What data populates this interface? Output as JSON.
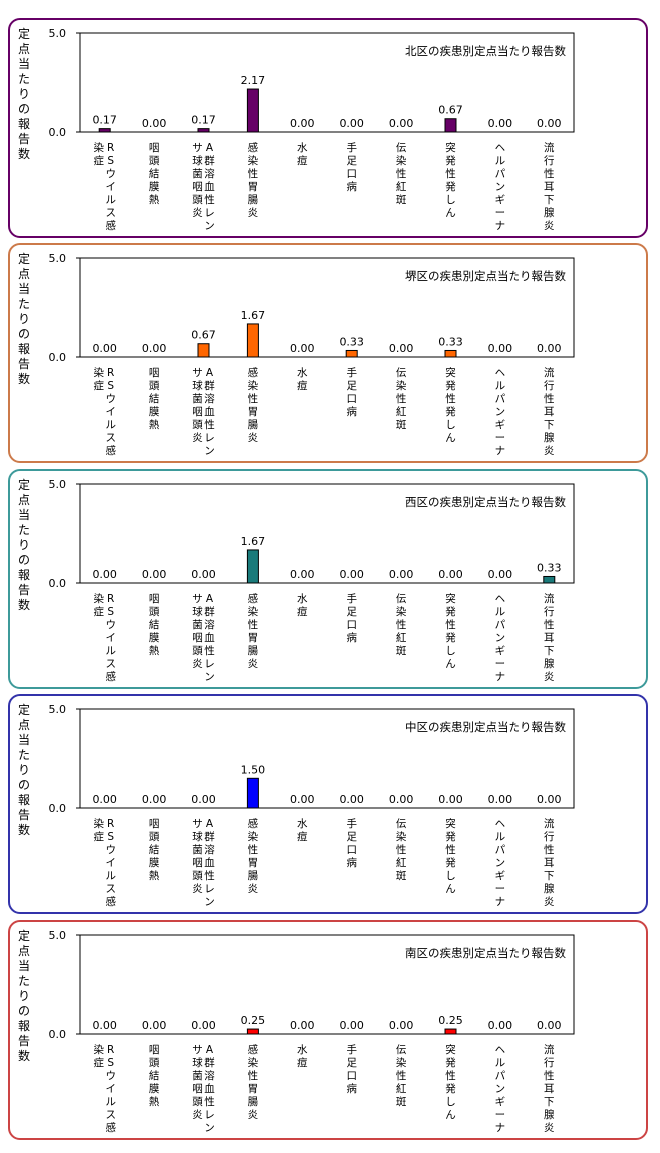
{
  "y_axis_label": "定点当たりの報告数",
  "chart_data": [
    {
      "type": "bar",
      "title": "北区の疾患別定点当たり報告数",
      "ylabel": "定点当たりの報告数",
      "ylim": [
        0,
        5
      ],
      "y_ticks": [
        "5.0",
        "0.0"
      ],
      "categories": [
        "RSウイルス感染症",
        "咽頭結膜熱",
        "A群溶血性レンサ球菌咽頭炎",
        "感染性胃腸炎",
        "水痘",
        "手足口病",
        "伝染性紅斑",
        "突発性発しん",
        "ヘルパンギーナ",
        "流行性耳下腺炎"
      ],
      "values": [
        0.17,
        0.0,
        0.17,
        2.17,
        0.0,
        0.0,
        0.0,
        0.67,
        0.0,
        0.0
      ],
      "value_labels": [
        "0.17",
        "0.00",
        "0.17",
        "2.17",
        "0.00",
        "0.00",
        "0.00",
        "0.67",
        "0.00",
        "0.00"
      ],
      "bar_color": "#660066",
      "border_color": "#660066",
      "grid": false,
      "legend": "none"
    },
    {
      "type": "bar",
      "title": "堺区の疾患別定点当たり報告数",
      "ylabel": "定点当たりの報告数",
      "ylim": [
        0,
        5
      ],
      "y_ticks": [
        "5.0",
        "0.0"
      ],
      "categories": [
        "RSウイルス感染症",
        "咽頭結膜熱",
        "A群溶血性レンサ球菌咽頭炎",
        "感染性胃腸炎",
        "水痘",
        "手足口病",
        "伝染性紅斑",
        "突発性発しん",
        "ヘルパンギーナ",
        "流行性耳下腺炎"
      ],
      "values": [
        0.0,
        0.0,
        0.67,
        1.67,
        0.0,
        0.33,
        0.0,
        0.33,
        0.0,
        0.0
      ],
      "value_labels": [
        "0.00",
        "0.00",
        "0.67",
        "1.67",
        "0.00",
        "0.33",
        "0.00",
        "0.33",
        "0.00",
        "0.00"
      ],
      "bar_color": "#ff6600",
      "border_color": "#cc7a4a",
      "grid": false,
      "legend": "none"
    },
    {
      "type": "bar",
      "title": "西区の疾患別定点当たり報告数",
      "ylabel": "定点当たりの報告数",
      "ylim": [
        0,
        5
      ],
      "y_ticks": [
        "5.0",
        "0.0"
      ],
      "categories": [
        "RSウイルス感染症",
        "咽頭結膜熱",
        "A群溶血性レンサ球菌咽頭炎",
        "感染性胃腸炎",
        "水痘",
        "手足口病",
        "伝染性紅斑",
        "突発性発しん",
        "ヘルパンギーナ",
        "流行性耳下腺炎"
      ],
      "values": [
        0.0,
        0.0,
        0.0,
        1.67,
        0.0,
        0.0,
        0.0,
        0.0,
        0.0,
        0.33
      ],
      "value_labels": [
        "0.00",
        "0.00",
        "0.00",
        "1.67",
        "0.00",
        "0.00",
        "0.00",
        "0.00",
        "0.00",
        "0.33"
      ],
      "bar_color": "#1a7a7a",
      "border_color": "#3d9a9a",
      "grid": false,
      "legend": "none"
    },
    {
      "type": "bar",
      "title": "中区の疾患別定点当たり報告数",
      "ylabel": "定点当たりの報告数",
      "ylim": [
        0,
        5
      ],
      "y_ticks": [
        "5.0",
        "0.0"
      ],
      "categories": [
        "RSウイルス感染症",
        "咽頭結膜熱",
        "A群溶血性レンサ球菌咽頭炎",
        "感染性胃腸炎",
        "水痘",
        "手足口病",
        "伝染性紅斑",
        "突発性発しん",
        "ヘルパンギーナ",
        "流行性耳下腺炎"
      ],
      "values": [
        0.0,
        0.0,
        0.0,
        1.5,
        0.0,
        0.0,
        0.0,
        0.0,
        0.0,
        0.0
      ],
      "value_labels": [
        "0.00",
        "0.00",
        "0.00",
        "1.50",
        "0.00",
        "0.00",
        "0.00",
        "0.00",
        "0.00",
        "0.00"
      ],
      "bar_color": "#0000ff",
      "border_color": "#3333aa",
      "grid": false,
      "legend": "none"
    },
    {
      "type": "bar",
      "title": "南区の疾患別定点当たり報告数",
      "ylabel": "定点当たりの報告数",
      "ylim": [
        0,
        5
      ],
      "y_ticks": [
        "5.0",
        "0.0"
      ],
      "categories": [
        "RSウイルス感染症",
        "咽頭結膜熱",
        "A群溶血性レンサ球菌咽頭炎",
        "感染性胃腸炎",
        "水痘",
        "手足口病",
        "伝染性紅斑",
        "突発性発しん",
        "ヘルパンギーナ",
        "流行性耳下腺炎"
      ],
      "values": [
        0.0,
        0.0,
        0.0,
        0.25,
        0.0,
        0.0,
        0.0,
        0.25,
        0.0,
        0.0
      ],
      "value_labels": [
        "0.00",
        "0.00",
        "0.00",
        "0.25",
        "0.00",
        "0.00",
        "0.00",
        "0.25",
        "0.00",
        "0.00"
      ],
      "bar_color": "#ff0000",
      "border_color": "#cc4444",
      "grid": false,
      "legend": "none"
    }
  ]
}
